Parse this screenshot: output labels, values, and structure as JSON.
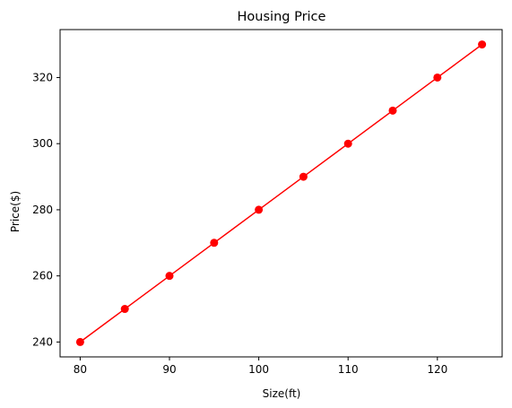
{
  "chart_data": {
    "type": "line",
    "title": "Housing Price",
    "xlabel": "Size(ft)",
    "ylabel": "Price($)",
    "x": [
      80,
      85,
      90,
      95,
      100,
      105,
      110,
      115,
      120,
      125
    ],
    "series": [
      {
        "values": [
          240,
          250,
          260,
          270,
          280,
          290,
          300,
          310,
          320,
          330
        ],
        "color": "#ff0000",
        "marker": "circle"
      }
    ],
    "xlim": [
      77.75,
      127.25
    ],
    "ylim": [
      235.5,
      334.5
    ],
    "xticks": [
      80,
      90,
      100,
      110,
      120
    ],
    "yticks": [
      240,
      260,
      280,
      300,
      320
    ],
    "grid": false
  }
}
